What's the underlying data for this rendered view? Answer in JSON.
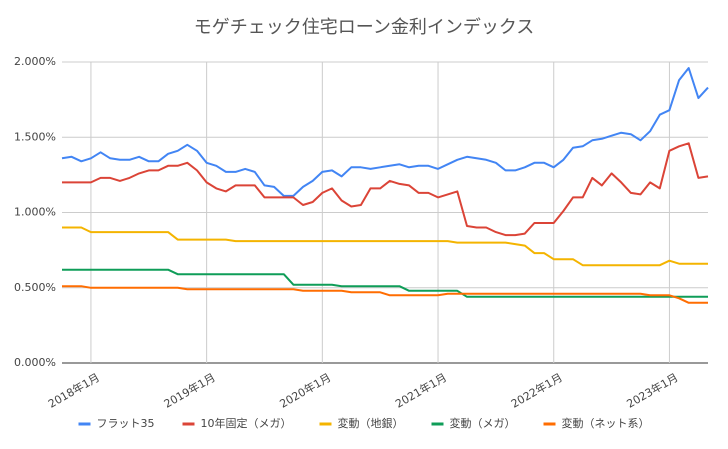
{
  "chart_data": {
    "type": "line",
    "title": "モゲチェック住宅ローン金利インデックス",
    "categories": [
      null,
      null,
      null,
      "2018年1月",
      null,
      null,
      null,
      null,
      null,
      null,
      null,
      null,
      null,
      null,
      null,
      "2019年1月",
      null,
      null,
      null,
      null,
      null,
      null,
      null,
      null,
      null,
      null,
      null,
      "2020年1月",
      null,
      null,
      null,
      null,
      null,
      null,
      null,
      null,
      null,
      null,
      null,
      "2021年1月",
      null,
      null,
      null,
      null,
      null,
      null,
      null,
      null,
      null,
      null,
      null,
      "2022年1月",
      null,
      null,
      null,
      null,
      null,
      null,
      null,
      null,
      null,
      null,
      null,
      "2023年1月",
      null,
      null,
      null,
      null
    ],
    "ylim": [
      0,
      2
    ],
    "yticks": [
      {
        "value": 0,
        "label": "0.000%"
      },
      {
        "value": 0.5,
        "label": "0.500%"
      },
      {
        "value": 1,
        "label": "1.000%"
      },
      {
        "value": 1.5,
        "label": "1.500%"
      },
      {
        "value": 2,
        "label": "2.000%"
      }
    ],
    "grid": true,
    "legend": "bottom",
    "series": [
      {
        "name": "フラット35",
        "color": "#4285f4",
        "values": [
          1.36,
          1.37,
          1.34,
          1.36,
          1.4,
          1.36,
          1.35,
          1.35,
          1.37,
          1.34,
          1.34,
          1.39,
          1.41,
          1.45,
          1.41,
          1.33,
          1.31,
          1.27,
          1.27,
          1.29,
          1.27,
          1.18,
          1.17,
          1.11,
          1.11,
          1.17,
          1.21,
          1.27,
          1.28,
          1.24,
          1.3,
          1.3,
          1.29,
          1.3,
          1.31,
          1.32,
          1.3,
          1.31,
          1.31,
          1.29,
          1.32,
          1.35,
          1.37,
          1.36,
          1.35,
          1.33,
          1.28,
          1.28,
          1.3,
          1.33,
          1.33,
          1.3,
          1.35,
          1.43,
          1.44,
          1.48,
          1.49,
          1.51,
          1.53,
          1.52,
          1.48,
          1.54,
          1.65,
          1.68,
          1.88,
          1.96,
          1.76,
          1.83
        ]
      },
      {
        "name": "10年固定（メガ）",
        "color": "#db4437",
        "values": [
          1.2,
          1.2,
          1.2,
          1.2,
          1.23,
          1.23,
          1.21,
          1.23,
          1.26,
          1.28,
          1.28,
          1.31,
          1.31,
          1.33,
          1.28,
          1.2,
          1.16,
          1.14,
          1.18,
          1.18,
          1.18,
          1.1,
          1.1,
          1.1,
          1.1,
          1.05,
          1.07,
          1.13,
          1.16,
          1.08,
          1.04,
          1.05,
          1.16,
          1.16,
          1.21,
          1.19,
          1.18,
          1.13,
          1.13,
          1.1,
          1.12,
          1.14,
          0.91,
          0.9,
          0.9,
          0.87,
          0.85,
          0.85,
          0.86,
          0.93,
          0.93,
          0.93,
          1.01,
          1.1,
          1.1,
          1.23,
          1.18,
          1.26,
          1.2,
          1.13,
          1.12,
          1.2,
          1.16,
          1.41,
          1.44,
          1.46,
          1.23,
          1.24
        ]
      },
      {
        "name": "変動（地銀）",
        "color": "#f4b400",
        "values": [
          0.9,
          0.9,
          0.9,
          0.87,
          0.87,
          0.87,
          0.87,
          0.87,
          0.87,
          0.87,
          0.87,
          0.87,
          0.82,
          0.82,
          0.82,
          0.82,
          0.82,
          0.82,
          0.81,
          0.81,
          0.81,
          0.81,
          0.81,
          0.81,
          0.81,
          0.81,
          0.81,
          0.81,
          0.81,
          0.81,
          0.81,
          0.81,
          0.81,
          0.81,
          0.81,
          0.81,
          0.81,
          0.81,
          0.81,
          0.81,
          0.81,
          0.8,
          0.8,
          0.8,
          0.8,
          0.8,
          0.8,
          0.79,
          0.78,
          0.73,
          0.73,
          0.69,
          0.69,
          0.69,
          0.65,
          0.65,
          0.65,
          0.65,
          0.65,
          0.65,
          0.65,
          0.65,
          0.65,
          0.68,
          0.66,
          0.66,
          0.66,
          0.66
        ]
      },
      {
        "name": "変動（メガ）",
        "color": "#0f9d58",
        "values": [
          0.62,
          0.62,
          0.62,
          0.62,
          0.62,
          0.62,
          0.62,
          0.62,
          0.62,
          0.62,
          0.62,
          0.62,
          0.59,
          0.59,
          0.59,
          0.59,
          0.59,
          0.59,
          0.59,
          0.59,
          0.59,
          0.59,
          0.59,
          0.59,
          0.52,
          0.52,
          0.52,
          0.52,
          0.52,
          0.51,
          0.51,
          0.51,
          0.51,
          0.51,
          0.51,
          0.51,
          0.48,
          0.48,
          0.48,
          0.48,
          0.48,
          0.48,
          0.44,
          0.44,
          0.44,
          0.44,
          0.44,
          0.44,
          0.44,
          0.44,
          0.44,
          0.44,
          0.44,
          0.44,
          0.44,
          0.44,
          0.44,
          0.44,
          0.44,
          0.44,
          0.44,
          0.44,
          0.44,
          0.44,
          0.44,
          0.44,
          0.44,
          0.44
        ]
      },
      {
        "name": "変動（ネット系）",
        "color": "#ff6d01",
        "values": [
          0.51,
          0.51,
          0.51,
          0.5,
          0.5,
          0.5,
          0.5,
          0.5,
          0.5,
          0.5,
          0.5,
          0.5,
          0.5,
          0.49,
          0.49,
          0.49,
          0.49,
          0.49,
          0.49,
          0.49,
          0.49,
          0.49,
          0.49,
          0.49,
          0.49,
          0.48,
          0.48,
          0.48,
          0.48,
          0.48,
          0.47,
          0.47,
          0.47,
          0.47,
          0.45,
          0.45,
          0.45,
          0.45,
          0.45,
          0.45,
          0.46,
          0.46,
          0.46,
          0.46,
          0.46,
          0.46,
          0.46,
          0.46,
          0.46,
          0.46,
          0.46,
          0.46,
          0.46,
          0.46,
          0.46,
          0.46,
          0.46,
          0.46,
          0.46,
          0.46,
          0.46,
          0.45,
          0.45,
          0.45,
          0.43,
          0.4,
          0.4,
          0.4
        ]
      }
    ]
  }
}
